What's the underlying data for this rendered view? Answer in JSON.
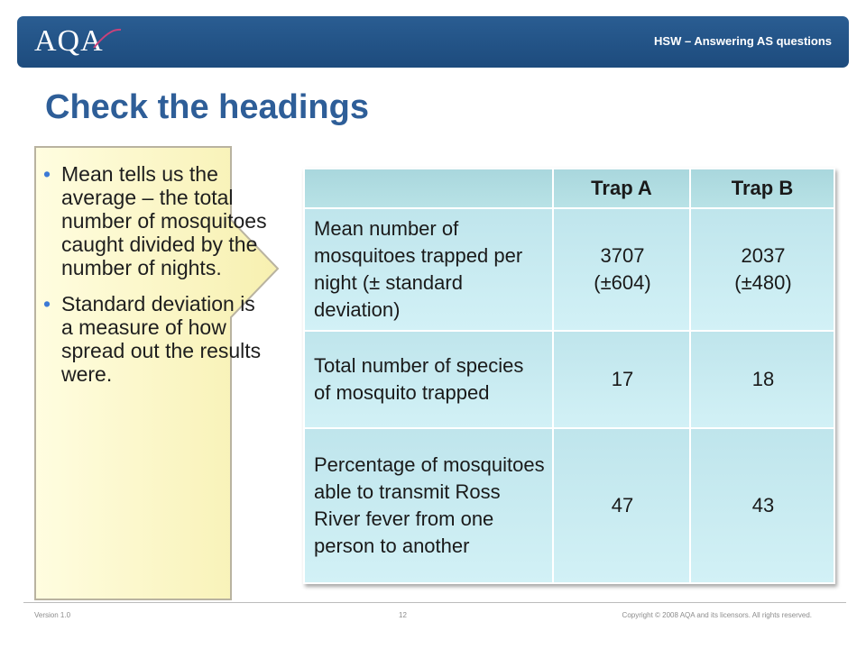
{
  "header": {
    "logo_text": "AQA",
    "subtitle": "HSW – Answering AS questions"
  },
  "title": "Check the headings",
  "callout": {
    "bullets": [
      "Mean tells us the average – the total number of mosquitoes caught divided by the number of nights.",
      "Standard deviation is a measure of how spread out the results were."
    ]
  },
  "table": {
    "headers": [
      "",
      "Trap A",
      "Trap B"
    ],
    "rows": [
      {
        "label": "Mean number of mosquitoes trapped per night (± standard deviation)",
        "a_line1": "3707",
        "a_line2": "(±604)",
        "b_line1": "2037",
        "b_line2": "(±480)"
      },
      {
        "label": "Total number of species of mosquito trapped",
        "a": "17",
        "b": "18"
      },
      {
        "label": "Percentage of mosquitoes able to transmit Ross River fever from one person to another",
        "a": "47",
        "b": "43"
      }
    ]
  },
  "footer": {
    "version": "Version 1.0",
    "page": "12",
    "copyright": "Copyright © 2008 AQA and its licensors. All rights reserved."
  },
  "colors": {
    "header_bar": "#1d4b7d",
    "title": "#2e5e98",
    "callout_fill": "#fdfbd2",
    "table_header": "#a9d7dd",
    "table_cell": "#c8ecf2",
    "bullet": "#3c7ad6"
  }
}
